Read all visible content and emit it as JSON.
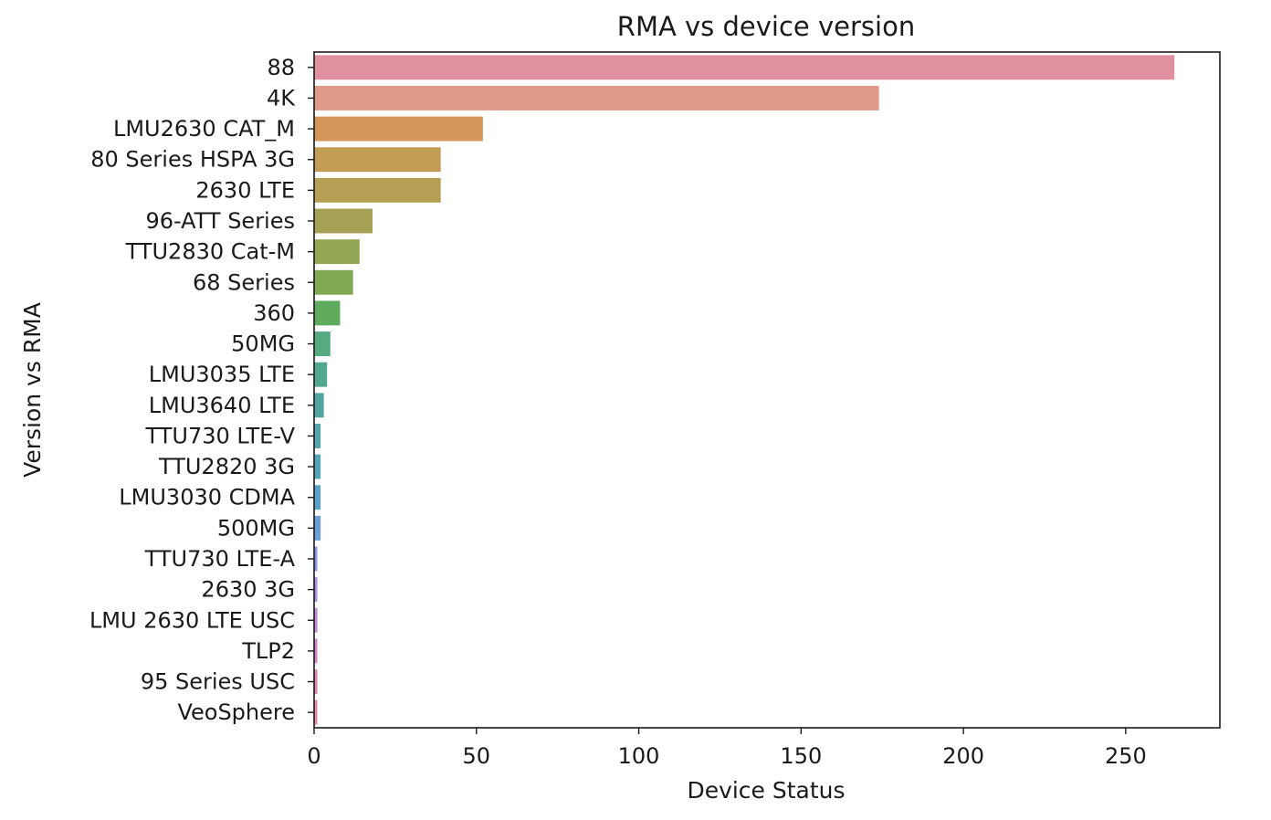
{
  "chart_data": {
    "type": "bar",
    "orientation": "horizontal",
    "title": "RMA vs device version",
    "xlabel": "Device Status",
    "ylabel": "Version vs RMA",
    "xlim": [
      0,
      279
    ],
    "xticks": [
      0,
      50,
      100,
      150,
      200,
      250
    ],
    "grid": false,
    "legend": "none",
    "categories": [
      "88",
      "4K",
      "LMU2630 CAT_M",
      "80 Series HSPA 3G",
      "2630 LTE",
      "96-ATT Series",
      "TTU2830 Cat-M",
      "68 Series",
      "360",
      "50MG",
      "LMU3035 LTE",
      "LMU3640 LTE",
      "TTU730 LTE-V",
      "TTU2820 3G",
      "LMU3030 CDMA",
      "500MG",
      "TTU730 LTE-A",
      "2630 3G",
      "LMU 2630 LTE USC",
      "TLP2",
      "95 Series USC",
      "VeoSphere"
    ],
    "values": [
      265,
      174,
      52,
      39,
      39,
      18,
      14,
      12,
      8,
      5,
      4,
      3,
      2,
      2,
      2,
      2,
      1,
      1,
      1,
      1,
      1,
      1
    ],
    "colors": [
      "#e0909e",
      "#df9a88",
      "#d5965a",
      "#c29b55",
      "#b5a056",
      "#a4a155",
      "#93a653",
      "#81a952",
      "#5eab5e",
      "#55aa80",
      "#52a890",
      "#52a69f",
      "#53a5ad",
      "#55a4bb",
      "#5aa3cb",
      "#6b9fdb",
      "#8a97df",
      "#a98cde",
      "#c285d8",
      "#d282c9",
      "#dc84b6",
      "#e089a6"
    ]
  }
}
